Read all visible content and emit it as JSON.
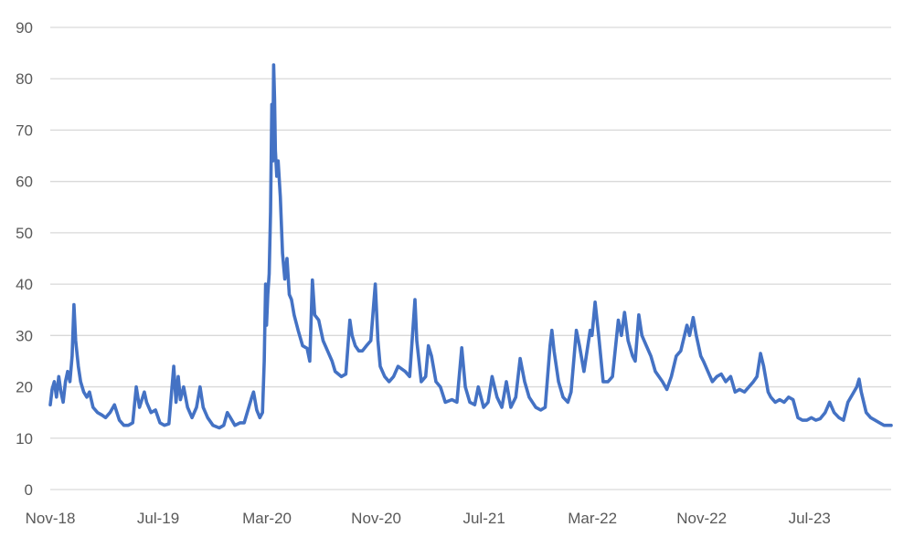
{
  "chart_data": {
    "type": "line",
    "title": "",
    "xlabel": "",
    "ylabel": "",
    "ylim": [
      0,
      90
    ],
    "yticks": [
      0,
      10,
      20,
      30,
      40,
      50,
      60,
      70,
      80,
      90
    ],
    "xlim": [
      "2018-11-01",
      "2023-12-31"
    ],
    "xticks": [
      {
        "date": "2018-11-01",
        "label": "Nov-18"
      },
      {
        "date": "2019-07-01",
        "label": "Jul-19"
      },
      {
        "date": "2020-03-01",
        "label": "Mar-20"
      },
      {
        "date": "2020-11-01",
        "label": "Nov-20"
      },
      {
        "date": "2021-07-01",
        "label": "Jul-21"
      },
      {
        "date": "2022-03-01",
        "label": "Mar-22"
      },
      {
        "date": "2022-11-01",
        "label": "Nov-22"
      },
      {
        "date": "2023-07-01",
        "label": "Jul-23"
      }
    ],
    "grid": true,
    "legend": "none",
    "series": [
      {
        "color": "#4472c4",
        "points": [
          [
            "2018-11-01",
            16.5
          ],
          [
            "2018-11-05",
            19.5
          ],
          [
            "2018-11-10",
            21
          ],
          [
            "2018-11-15",
            18
          ],
          [
            "2018-11-20",
            22
          ],
          [
            "2018-11-25",
            19
          ],
          [
            "2018-11-30",
            17
          ],
          [
            "2018-12-05",
            21
          ],
          [
            "2018-12-10",
            23
          ],
          [
            "2018-12-15",
            21
          ],
          [
            "2018-12-20",
            26
          ],
          [
            "2018-12-24",
            36
          ],
          [
            "2018-12-28",
            29
          ],
          [
            "2019-01-03",
            24
          ],
          [
            "2019-01-08",
            21
          ],
          [
            "2019-01-15",
            19
          ],
          [
            "2019-01-22",
            18
          ],
          [
            "2019-01-28",
            19
          ],
          [
            "2019-02-05",
            16
          ],
          [
            "2019-02-15",
            15
          ],
          [
            "2019-02-25",
            14.5
          ],
          [
            "2019-03-05",
            14
          ],
          [
            "2019-03-15",
            15
          ],
          [
            "2019-03-25",
            16.5
          ],
          [
            "2019-04-05",
            13.5
          ],
          [
            "2019-04-15",
            12.5
          ],
          [
            "2019-04-25",
            12.5
          ],
          [
            "2019-05-05",
            13
          ],
          [
            "2019-05-13",
            20
          ],
          [
            "2019-05-20",
            16
          ],
          [
            "2019-05-31",
            19
          ],
          [
            "2019-06-05",
            17
          ],
          [
            "2019-06-15",
            15
          ],
          [
            "2019-06-25",
            15.5
          ],
          [
            "2019-07-05",
            13
          ],
          [
            "2019-07-15",
            12.5
          ],
          [
            "2019-07-25",
            12.8
          ],
          [
            "2019-08-05",
            24
          ],
          [
            "2019-08-10",
            17
          ],
          [
            "2019-08-15",
            22
          ],
          [
            "2019-08-20",
            17.5
          ],
          [
            "2019-08-27",
            20
          ],
          [
            "2019-09-05",
            16
          ],
          [
            "2019-09-15",
            14
          ],
          [
            "2019-09-25",
            16
          ],
          [
            "2019-10-03",
            20
          ],
          [
            "2019-10-10",
            16
          ],
          [
            "2019-10-20",
            14
          ],
          [
            "2019-11-01",
            12.5
          ],
          [
            "2019-11-15",
            12
          ],
          [
            "2019-11-25",
            12.5
          ],
          [
            "2019-12-03",
            15
          ],
          [
            "2019-12-10",
            14
          ],
          [
            "2019-12-20",
            12.5
          ],
          [
            "2020-01-01",
            13
          ],
          [
            "2020-01-10",
            13
          ],
          [
            "2020-01-27",
            18
          ],
          [
            "2020-01-31",
            19
          ],
          [
            "2020-02-07",
            15.5
          ],
          [
            "2020-02-14",
            14
          ],
          [
            "2020-02-20",
            15
          ],
          [
            "2020-02-24",
            25
          ],
          [
            "2020-02-27",
            40
          ],
          [
            "2020-02-29",
            32
          ],
          [
            "2020-03-03",
            38
          ],
          [
            "2020-03-06",
            42
          ],
          [
            "2020-03-09",
            54
          ],
          [
            "2020-03-12",
            75
          ],
          [
            "2020-03-14",
            64
          ],
          [
            "2020-03-16",
            82.7
          ],
          [
            "2020-03-18",
            76
          ],
          [
            "2020-03-20",
            66
          ],
          [
            "2020-03-23",
            61
          ],
          [
            "2020-03-26",
            64
          ],
          [
            "2020-03-31",
            57
          ],
          [
            "2020-04-05",
            46
          ],
          [
            "2020-04-10",
            41
          ],
          [
            "2020-04-15",
            45
          ],
          [
            "2020-04-20",
            38
          ],
          [
            "2020-04-25",
            37
          ],
          [
            "2020-05-01",
            34
          ],
          [
            "2020-05-10",
            31
          ],
          [
            "2020-05-20",
            28
          ],
          [
            "2020-05-30",
            27.5
          ],
          [
            "2020-06-05",
            25
          ],
          [
            "2020-06-11",
            40.8
          ],
          [
            "2020-06-16",
            34
          ],
          [
            "2020-06-25",
            33
          ],
          [
            "2020-07-05",
            29
          ],
          [
            "2020-07-15",
            27
          ],
          [
            "2020-07-25",
            25
          ],
          [
            "2020-08-01",
            23
          ],
          [
            "2020-08-15",
            22
          ],
          [
            "2020-08-25",
            22.5
          ],
          [
            "2020-09-03",
            33
          ],
          [
            "2020-09-08",
            30
          ],
          [
            "2020-09-15",
            28
          ],
          [
            "2020-09-23",
            27
          ],
          [
            "2020-10-01",
            27
          ],
          [
            "2020-10-10",
            28
          ],
          [
            "2020-10-20",
            29
          ],
          [
            "2020-10-30",
            40
          ],
          [
            "2020-11-05",
            29
          ],
          [
            "2020-11-10",
            24
          ],
          [
            "2020-11-20",
            22
          ],
          [
            "2020-11-30",
            21
          ],
          [
            "2020-12-10",
            22
          ],
          [
            "2020-12-20",
            24
          ],
          [
            "2021-01-05",
            23
          ],
          [
            "2021-01-15",
            22
          ],
          [
            "2021-01-27",
            37
          ],
          [
            "2021-01-31",
            29
          ],
          [
            "2021-02-10",
            21
          ],
          [
            "2021-02-20",
            22
          ],
          [
            "2021-02-26",
            28
          ],
          [
            "2021-03-05",
            26
          ],
          [
            "2021-03-15",
            21
          ],
          [
            "2021-03-25",
            20
          ],
          [
            "2021-04-05",
            17
          ],
          [
            "2021-04-20",
            17.5
          ],
          [
            "2021-05-01",
            17
          ],
          [
            "2021-05-12",
            27.6
          ],
          [
            "2021-05-20",
            20
          ],
          [
            "2021-05-30",
            17
          ],
          [
            "2021-06-10",
            16.5
          ],
          [
            "2021-06-18",
            20
          ],
          [
            "2021-06-30",
            16
          ],
          [
            "2021-07-10",
            17
          ],
          [
            "2021-07-19",
            22
          ],
          [
            "2021-07-30",
            18
          ],
          [
            "2021-08-10",
            16
          ],
          [
            "2021-08-20",
            21
          ],
          [
            "2021-08-30",
            16
          ],
          [
            "2021-09-10",
            18
          ],
          [
            "2021-09-20",
            25.5
          ],
          [
            "2021-09-30",
            21
          ],
          [
            "2021-10-10",
            18
          ],
          [
            "2021-10-25",
            16
          ],
          [
            "2021-11-05",
            15.5
          ],
          [
            "2021-11-15",
            16
          ],
          [
            "2021-11-26",
            28
          ],
          [
            "2021-11-30",
            31
          ],
          [
            "2021-12-05",
            27
          ],
          [
            "2021-12-15",
            21
          ],
          [
            "2021-12-25",
            18
          ],
          [
            "2022-01-05",
            17
          ],
          [
            "2022-01-12",
            19
          ],
          [
            "2022-01-24",
            31
          ],
          [
            "2022-01-31",
            28
          ],
          [
            "2022-02-10",
            23
          ],
          [
            "2022-02-24",
            31
          ],
          [
            "2022-02-28",
            30
          ],
          [
            "2022-03-07",
            36.5
          ],
          [
            "2022-03-15",
            30
          ],
          [
            "2022-03-25",
            21
          ],
          [
            "2022-04-05",
            21
          ],
          [
            "2022-04-15",
            22
          ],
          [
            "2022-04-28",
            33
          ],
          [
            "2022-05-05",
            30
          ],
          [
            "2022-05-12",
            34.5
          ],
          [
            "2022-05-20",
            29
          ],
          [
            "2022-05-30",
            26
          ],
          [
            "2022-06-05",
            25
          ],
          [
            "2022-06-13",
            34
          ],
          [
            "2022-06-20",
            30
          ],
          [
            "2022-06-30",
            28
          ],
          [
            "2022-07-10",
            26
          ],
          [
            "2022-07-20",
            23
          ],
          [
            "2022-08-05",
            21
          ],
          [
            "2022-08-15",
            19.5
          ],
          [
            "2022-08-25",
            22
          ],
          [
            "2022-09-05",
            26
          ],
          [
            "2022-09-15",
            27
          ],
          [
            "2022-09-29",
            32
          ],
          [
            "2022-10-05",
            30
          ],
          [
            "2022-10-13",
            33.5
          ],
          [
            "2022-10-20",
            30
          ],
          [
            "2022-10-30",
            26
          ],
          [
            "2022-11-05",
            25
          ],
          [
            "2022-11-15",
            23
          ],
          [
            "2022-11-25",
            21
          ],
          [
            "2022-12-05",
            22
          ],
          [
            "2022-12-15",
            22.5
          ],
          [
            "2022-12-25",
            21
          ],
          [
            "2023-01-05",
            22
          ],
          [
            "2023-01-15",
            19
          ],
          [
            "2023-01-25",
            19.5
          ],
          [
            "2023-02-05",
            19
          ],
          [
            "2023-02-15",
            20
          ],
          [
            "2023-02-25",
            21
          ],
          [
            "2023-03-05",
            22
          ],
          [
            "2023-03-13",
            26.5
          ],
          [
            "2023-03-20",
            24
          ],
          [
            "2023-03-30",
            19
          ],
          [
            "2023-04-05",
            18
          ],
          [
            "2023-04-15",
            17
          ],
          [
            "2023-04-25",
            17.5
          ],
          [
            "2023-05-05",
            17
          ],
          [
            "2023-05-15",
            18
          ],
          [
            "2023-05-25",
            17.5
          ],
          [
            "2023-06-05",
            14
          ],
          [
            "2023-06-15",
            13.5
          ],
          [
            "2023-06-25",
            13.5
          ],
          [
            "2023-07-05",
            14
          ],
          [
            "2023-07-15",
            13.5
          ],
          [
            "2023-07-25",
            13.8
          ],
          [
            "2023-08-05",
            15
          ],
          [
            "2023-08-15",
            17
          ],
          [
            "2023-08-25",
            15
          ],
          [
            "2023-09-05",
            14
          ],
          [
            "2023-09-15",
            13.5
          ],
          [
            "2023-09-25",
            17
          ],
          [
            "2023-10-05",
            18.5
          ],
          [
            "2023-10-15",
            20
          ],
          [
            "2023-10-20",
            21.5
          ],
          [
            "2023-10-25",
            19
          ],
          [
            "2023-11-05",
            15
          ],
          [
            "2023-11-15",
            14
          ],
          [
            "2023-11-25",
            13.5
          ],
          [
            "2023-12-05",
            13
          ],
          [
            "2023-12-15",
            12.5
          ],
          [
            "2023-12-31",
            12.5
          ]
        ]
      }
    ]
  }
}
